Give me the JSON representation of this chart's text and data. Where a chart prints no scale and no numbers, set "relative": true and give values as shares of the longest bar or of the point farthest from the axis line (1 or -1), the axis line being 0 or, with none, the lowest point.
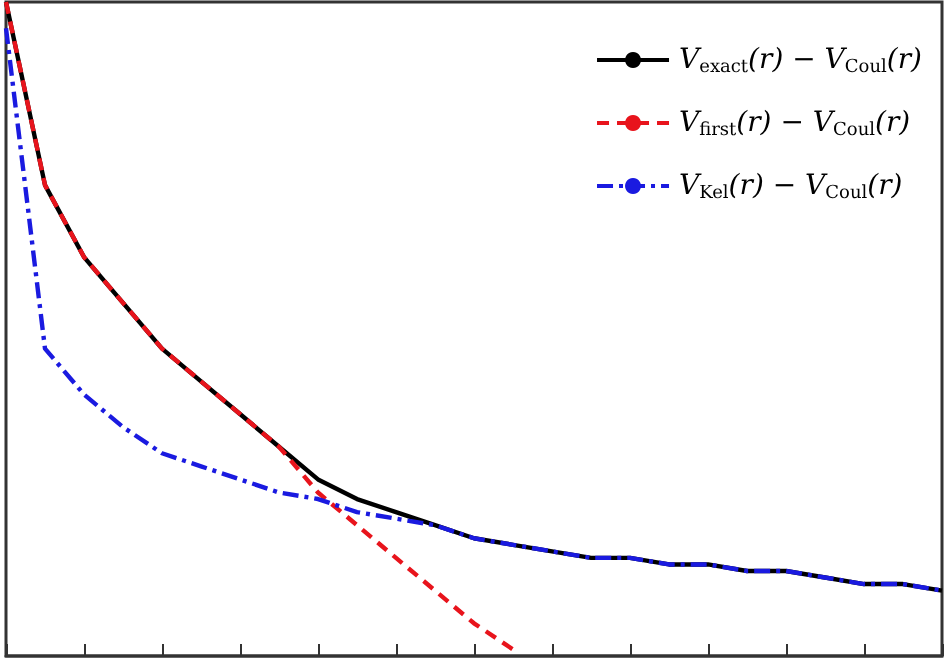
{
  "chart_data": {
    "type": "line",
    "relative": true,
    "tick_labels": false,
    "legend": "top right",
    "marker": "none",
    "categories": [
      null,
      null,
      null,
      null,
      null,
      null,
      null,
      null,
      null,
      null,
      null,
      null,
      null,
      null,
      null,
      null,
      null,
      null,
      null,
      null,
      null,
      null,
      null,
      null,
      null
    ],
    "series": [
      {
        "name": "V$_{exact}$(r) − V$_{Coul}$(r)",
        "color": "#000000",
        "line_style": "solid",
        "values": [
          1.0,
          0.72,
          0.61,
          0.54,
          0.47,
          0.42,
          0.37,
          0.32,
          0.27,
          0.24,
          0.22,
          0.2,
          0.18,
          0.17,
          0.16,
          0.15,
          0.15,
          0.14,
          0.14,
          0.13,
          0.13,
          0.12,
          0.11,
          0.11,
          0.1
        ]
      },
      {
        "name": "V$_{first}$(r) − V$_{Coul}$(r)",
        "color": "#e8141c",
        "line_style": "dashed",
        "values": [
          1.0,
          0.72,
          0.61,
          0.54,
          0.47,
          0.42,
          0.37,
          0.32,
          0.25,
          0.2,
          0.15,
          0.1,
          0.05,
          0.01,
          null,
          null,
          null,
          null,
          null,
          null,
          null,
          null,
          null,
          null,
          null
        ]
      },
      {
        "name": "V$_{Kel}$(r) − V$_{Coul}$(r)",
        "color": "#1a1ae0",
        "line_style": "dashdot",
        "values": [
          0.96,
          0.47,
          0.4,
          0.35,
          0.31,
          0.29,
          0.27,
          0.25,
          0.24,
          0.22,
          0.21,
          0.2,
          0.18,
          0.17,
          0.16,
          0.15,
          0.15,
          0.14,
          0.14,
          0.13,
          0.13,
          0.12,
          0.11,
          0.11,
          0.1
        ]
      }
    ]
  }
}
